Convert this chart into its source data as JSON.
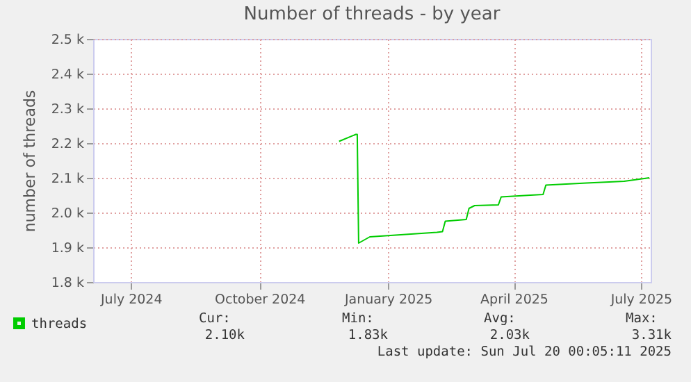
{
  "chart_data": {
    "type": "line",
    "title": "Number of threads - by year",
    "ylabel": "number of threads",
    "x": [
      "2024-11-27",
      "2024-12-09",
      "2024-12-10",
      "2024-12-11",
      "2024-12-19",
      "2025-02-05",
      "2025-02-09",
      "2025-02-11",
      "2025-02-26",
      "2025-02-28",
      "2025-03-04",
      "2025-03-21",
      "2025-03-23",
      "2025-04-13",
      "2025-04-22",
      "2025-04-24",
      "2025-05-23",
      "2025-06-19",
      "2025-07-07"
    ],
    "series": [
      {
        "name": "threads",
        "color": "#00cc00",
        "values": [
          2205,
          2225,
          2225,
          1912,
          1930,
          1943,
          1945,
          1975,
          1980,
          2012,
          2020,
          2022,
          2045,
          2050,
          2052,
          2079,
          2085,
          2090,
          2100
        ]
      }
    ],
    "xlim": [
      "2024-06-04",
      "2025-07-08"
    ],
    "xticks": [
      {
        "value": "2024-07-01",
        "label": "July 2024"
      },
      {
        "value": "2024-10-01",
        "label": "October 2024"
      },
      {
        "value": "2025-01-01",
        "label": "January 2025"
      },
      {
        "value": "2025-04-01",
        "label": "April 2025"
      },
      {
        "value": "2025-07-01",
        "label": "July 2025"
      }
    ],
    "ylim": [
      1800,
      2500
    ],
    "yticks": [
      {
        "value": 1800,
        "label": "1.8 k"
      },
      {
        "value": 1900,
        "label": "1.9 k"
      },
      {
        "value": 2000,
        "label": "2.0 k"
      },
      {
        "value": 2100,
        "label": "2.1 k"
      },
      {
        "value": 2200,
        "label": "2.2 k"
      },
      {
        "value": 2300,
        "label": "2.3 k"
      },
      {
        "value": 2400,
        "label": "2.4 k"
      },
      {
        "value": 2500,
        "label": "2.5 k"
      }
    ],
    "grid": true,
    "legend": "bottom",
    "annotations": [
      "Cur:",
      "Min:",
      "Avg:",
      "Max:",
      "2.10k",
      "1.83k",
      "2.03k",
      "3.31k",
      "Last update: Sun Jul 20 00:05:11 2025"
    ]
  }
}
